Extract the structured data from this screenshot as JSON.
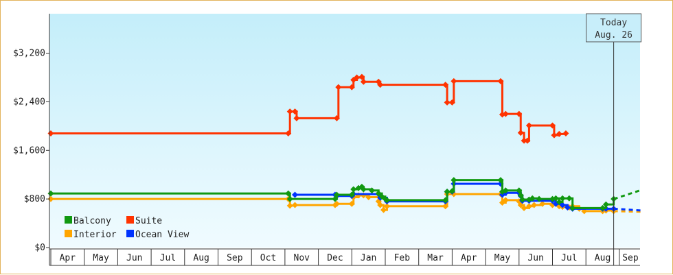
{
  "chart_data": {
    "type": "line",
    "title": "",
    "xlabel": "",
    "ylabel": "",
    "ylim": [
      0,
      3200
    ],
    "yticks": [
      0,
      800,
      1600,
      2400,
      3200
    ],
    "ytick_labels": [
      "$0",
      "$800",
      "$1,600",
      "$2,400",
      "$3,200"
    ],
    "x_ticks": [
      "Apr",
      "May",
      "Jun",
      "Jul",
      "Aug",
      "Sep",
      "Oct",
      "Nov",
      "Dec",
      "Jan",
      "Feb",
      "Mar",
      "Apr",
      "May",
      "Jun",
      "Jul",
      "Aug",
      "Sep"
    ],
    "xlim": [
      0,
      17.67
    ],
    "step": true,
    "grid": false,
    "legend_position": "bottom-left",
    "background": "gradient light-blue",
    "today_marker": {
      "line1": "Today",
      "line2": "Aug. 26",
      "x": 16.83
    },
    "series": [
      {
        "name": "Suite",
        "color": "#ff3300",
        "points": [
          [
            0,
            1880
          ],
          [
            7.1,
            1880
          ],
          [
            7.15,
            2240
          ],
          [
            7.3,
            2240
          ],
          [
            7.35,
            2130
          ],
          [
            8.55,
            2130
          ],
          [
            8.6,
            2640
          ],
          [
            9.0,
            2640
          ],
          [
            9.05,
            2760
          ],
          [
            9.15,
            2800
          ],
          [
            9.3,
            2810
          ],
          [
            9.35,
            2730
          ],
          [
            9.8,
            2730
          ],
          [
            9.85,
            2680
          ],
          [
            11.8,
            2680
          ],
          [
            11.85,
            2390
          ],
          [
            12.0,
            2390
          ],
          [
            12.05,
            2740
          ],
          [
            13.45,
            2740
          ],
          [
            13.5,
            2190
          ],
          [
            13.6,
            2200
          ],
          [
            14.0,
            2200
          ],
          [
            14.05,
            1890
          ],
          [
            14.15,
            1760
          ],
          [
            14.25,
            1760
          ],
          [
            14.3,
            2010
          ],
          [
            15.0,
            2010
          ],
          [
            15.05,
            1850
          ],
          [
            15.2,
            1870
          ],
          [
            15.4,
            1880
          ]
        ],
        "dashed_tail": []
      },
      {
        "name": "Balcony",
        "color": "#119911",
        "points": [
          [
            0,
            890
          ],
          [
            7.1,
            890
          ],
          [
            7.15,
            800
          ],
          [
            8.5,
            800
          ],
          [
            8.55,
            870
          ],
          [
            9.0,
            870
          ],
          [
            9.05,
            960
          ],
          [
            9.2,
            980
          ],
          [
            9.3,
            1000
          ],
          [
            9.35,
            960
          ],
          [
            9.6,
            940
          ],
          [
            9.8,
            890
          ],
          [
            9.9,
            840
          ],
          [
            10.0,
            800
          ],
          [
            10.05,
            780
          ],
          [
            11.8,
            780
          ],
          [
            11.85,
            920
          ],
          [
            12.0,
            930
          ],
          [
            12.05,
            1110
          ],
          [
            13.45,
            1110
          ],
          [
            13.5,
            920
          ],
          [
            13.6,
            940
          ],
          [
            14.0,
            940
          ],
          [
            14.05,
            860
          ],
          [
            14.1,
            790
          ],
          [
            14.3,
            790
          ],
          [
            14.4,
            810
          ],
          [
            14.6,
            800
          ],
          [
            15.0,
            800
          ],
          [
            15.1,
            810
          ],
          [
            15.2,
            750
          ],
          [
            15.3,
            810
          ],
          [
            15.5,
            810
          ],
          [
            15.6,
            650
          ],
          [
            16.5,
            650
          ],
          [
            16.6,
            710
          ],
          [
            16.83,
            800
          ]
        ],
        "dashed_tail": [
          [
            16.83,
            800
          ],
          [
            17.67,
            950
          ]
        ]
      },
      {
        "name": "Ocean View",
        "color": "#0033ff",
        "points": [
          [
            7.3,
            870
          ],
          [
            8.5,
            870
          ],
          [
            8.55,
            850
          ],
          [
            9.0,
            850
          ],
          [
            9.05,
            880
          ],
          [
            9.8,
            880
          ],
          [
            9.85,
            820
          ],
          [
            10.05,
            760
          ],
          [
            11.8,
            760
          ],
          [
            11.85,
            920
          ],
          [
            12.0,
            920
          ],
          [
            12.05,
            1050
          ],
          [
            13.45,
            1050
          ],
          [
            13.5,
            870
          ],
          [
            13.6,
            900
          ],
          [
            14.0,
            900
          ],
          [
            14.05,
            850
          ],
          [
            14.1,
            770
          ],
          [
            14.3,
            770
          ],
          [
            15.0,
            770
          ],
          [
            15.1,
            720
          ],
          [
            15.3,
            700
          ],
          [
            15.45,
            660
          ],
          [
            15.6,
            640
          ],
          [
            16.5,
            640
          ],
          [
            16.6,
            640
          ],
          [
            16.83,
            640
          ]
        ],
        "dashed_tail": [
          [
            16.83,
            640
          ],
          [
            17.67,
            610
          ]
        ]
      },
      {
        "name": "Interior",
        "color": "#ffa500",
        "points": [
          [
            0,
            800
          ],
          [
            7.1,
            800
          ],
          [
            7.15,
            690
          ],
          [
            7.3,
            700
          ],
          [
            8.5,
            700
          ],
          [
            8.55,
            720
          ],
          [
            9.0,
            720
          ],
          [
            9.05,
            830
          ],
          [
            9.2,
            860
          ],
          [
            9.35,
            860
          ],
          [
            9.5,
            830
          ],
          [
            9.8,
            760
          ],
          [
            9.85,
            700
          ],
          [
            9.95,
            620
          ],
          [
            10.05,
            680
          ],
          [
            11.8,
            680
          ],
          [
            11.85,
            880
          ],
          [
            12.05,
            880
          ],
          [
            13.45,
            880
          ],
          [
            13.5,
            740
          ],
          [
            13.6,
            780
          ],
          [
            14.0,
            760
          ],
          [
            14.05,
            700
          ],
          [
            14.15,
            650
          ],
          [
            14.3,
            680
          ],
          [
            14.45,
            700
          ],
          [
            14.7,
            720
          ],
          [
            15.0,
            700
          ],
          [
            15.2,
            680
          ],
          [
            15.3,
            670
          ],
          [
            15.5,
            660
          ],
          [
            15.6,
            680
          ],
          [
            15.8,
            640
          ],
          [
            15.95,
            600
          ],
          [
            16.5,
            600
          ],
          [
            16.6,
            610
          ],
          [
            16.83,
            600
          ]
        ],
        "dashed_tail": [
          [
            16.83,
            600
          ],
          [
            17.67,
            590
          ]
        ]
      }
    ],
    "legend": [
      {
        "name": "Balcony",
        "color": "#119911",
        "col": 0,
        "row": 0
      },
      {
        "name": "Suite",
        "color": "#ff3300",
        "col": 1,
        "row": 0
      },
      {
        "name": "Interior",
        "color": "#ffa500",
        "col": 0,
        "row": 1
      },
      {
        "name": "Ocean View",
        "color": "#0033ff",
        "col": 1,
        "row": 1
      }
    ]
  }
}
